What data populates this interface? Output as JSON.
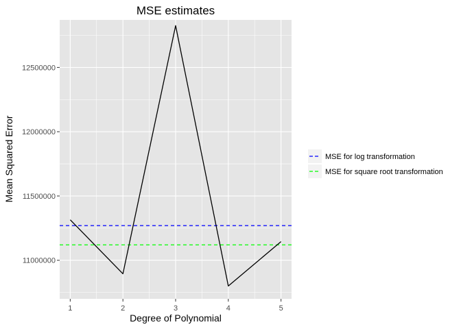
{
  "chart_data": {
    "type": "line",
    "title": "MSE estimates",
    "xlabel": "Degree of Polynomial",
    "ylabel": "Mean Squared Error",
    "x": [
      1,
      2,
      3,
      4,
      5
    ],
    "x_ticks": [
      "1",
      "2",
      "3",
      "4",
      "5"
    ],
    "y_ticks": [
      11000000,
      11500000,
      12000000,
      12500000
    ],
    "y_tick_labels": [
      "11000000",
      "11500000",
      "12000000",
      "12500000"
    ],
    "xlim": [
      0.8,
      5.2
    ],
    "ylim": [
      10700000,
      12870000
    ],
    "grid": true,
    "series": [
      {
        "values": [
          11315000,
          10895000,
          12825000,
          10800000,
          11145000
        ],
        "color": "#000000",
        "style": "solid"
      }
    ],
    "hlines": [
      {
        "name": "MSE for log transformation",
        "value": 11270000,
        "color": "#0000ff",
        "style": "dashed"
      },
      {
        "name": "MSE for square root transformation",
        "value": 11120000,
        "color": "#00ff00",
        "style": "dashed"
      }
    ],
    "legend_position": "right",
    "panel_color": "#e5e5e5",
    "grid_color": "#ffffff"
  }
}
